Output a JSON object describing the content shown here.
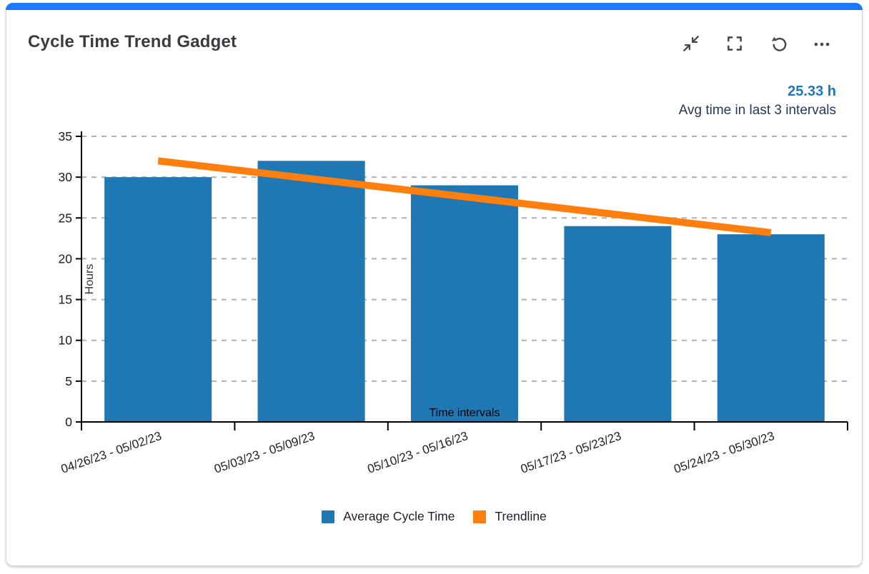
{
  "card": {
    "title": "Cycle Time Trend Gadget",
    "accent_color": "#1d7afc",
    "toolbar": {
      "icons": [
        "collapse-to-corner",
        "fullscreen",
        "refresh",
        "more-options"
      ]
    },
    "metric": {
      "value": "25.33 h",
      "value_color": "#1d76bb",
      "caption": "Avg time in last 3 intervals",
      "caption_color": "#253858"
    }
  },
  "chart_data": {
    "type": "bar",
    "categories": [
      "04/26/23 - 05/02/23",
      "05/03/23 - 05/09/23",
      "05/10/23 - 05/16/23",
      "05/17/23 - 05/23/23",
      "05/24/23 - 05/30/23"
    ],
    "series": [
      {
        "name": "Average Cycle Time",
        "type": "bar",
        "color": "#1f77b4",
        "values": [
          30,
          32,
          29,
          24,
          23
        ]
      },
      {
        "name": "Trendline",
        "type": "line",
        "color": "#ff7f0e",
        "points": [
          {
            "x": 0,
            "y": 32
          },
          {
            "x": 4,
            "y": 23.2
          }
        ]
      }
    ],
    "xlabel": "Time intervals",
    "ylabel": "Hours",
    "ylim": [
      0,
      35
    ],
    "ytick_step": 5,
    "grid": "horizontal-dashed",
    "grid_color": "#b0b0b0",
    "axis_color": "#000000",
    "legend_position": "bottom"
  }
}
